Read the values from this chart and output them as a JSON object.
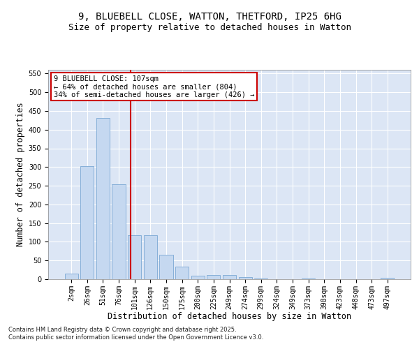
{
  "title_line1": "9, BLUEBELL CLOSE, WATTON, THETFORD, IP25 6HG",
  "title_line2": "Size of property relative to detached houses in Watton",
  "xlabel": "Distribution of detached houses by size in Watton",
  "ylabel": "Number of detached properties",
  "categories": [
    "2sqm",
    "26sqm",
    "51sqm",
    "76sqm",
    "101sqm",
    "126sqm",
    "150sqm",
    "175sqm",
    "200sqm",
    "225sqm",
    "249sqm",
    "274sqm",
    "299sqm",
    "324sqm",
    "349sqm",
    "373sqm",
    "398sqm",
    "423sqm",
    "448sqm",
    "473sqm",
    "497sqm"
  ],
  "values": [
    15,
    302,
    432,
    253,
    118,
    118,
    65,
    33,
    9,
    11,
    11,
    5,
    1,
    0,
    0,
    2,
    0,
    0,
    0,
    0,
    4
  ],
  "bar_color": "#c5d8f0",
  "bar_edge_color": "#7aa8d4",
  "vline_color": "#cc0000",
  "vline_x": 3.74,
  "annotation_text": "9 BLUEBELL CLOSE: 107sqm\n← 64% of detached houses are smaller (804)\n34% of semi-detached houses are larger (426) →",
  "annotation_box_color": "#ffffff",
  "annotation_box_edge_color": "#cc0000",
  "ylim": [
    0,
    560
  ],
  "yticks": [
    0,
    50,
    100,
    150,
    200,
    250,
    300,
    350,
    400,
    450,
    500,
    550
  ],
  "background_color": "#dce6f5",
  "footer_text": "Contains HM Land Registry data © Crown copyright and database right 2025.\nContains public sector information licensed under the Open Government Licence v3.0.",
  "title_fontsize": 10,
  "subtitle_fontsize": 9,
  "axis_label_fontsize": 8.5,
  "tick_fontsize": 7,
  "footer_fontsize": 6,
  "ann_fontsize": 7.5
}
